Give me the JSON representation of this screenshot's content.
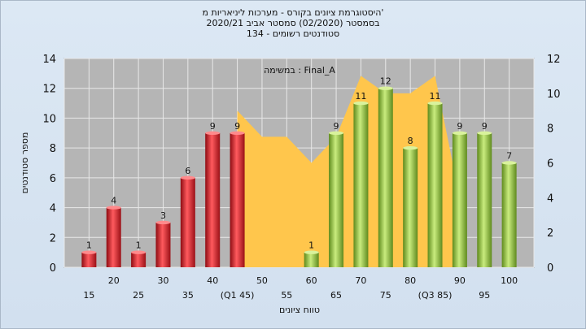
{
  "chart_data": {
    "type": "bar",
    "title_lines": [
      "היסטוגרמת ציונים בקורס - מערכות ליניאריות מ'",
      "בסמסטר (02/2020) סמסטר אביב 2020/21",
      "סטודנטים רשומים - 134"
    ],
    "annotation": "במשימה : Final_A",
    "xlabel": "טווח ציונים",
    "ylabel": "מספר סטודנטים",
    "ylim": [
      0,
      14
    ],
    "y_ticks": [
      0,
      2,
      4,
      6,
      8,
      10,
      12,
      14
    ],
    "y2lim": [
      0,
      12
    ],
    "y2_ticks": [
      0,
      2,
      4,
      6,
      8,
      10,
      12
    ],
    "grid": true,
    "x_tick_labels_upper": [
      "20",
      "30",
      "40",
      "50",
      "60",
      "70",
      "80",
      "90",
      "100"
    ],
    "x_tick_labels_lower": [
      "15",
      "25",
      "35",
      "(Q1 45)",
      "55",
      "65",
      "75",
      "(Q3 85)",
      "95"
    ],
    "categories": [
      "15",
      "20",
      "25",
      "30",
      "35",
      "40",
      "45",
      "50",
      "55",
      "60",
      "65",
      "70",
      "75",
      "80",
      "85",
      "90",
      "95",
      "100"
    ],
    "values": [
      1,
      4,
      1,
      3,
      6,
      9,
      9,
      0,
      0,
      1,
      9,
      11,
      12,
      8,
      11,
      9,
      9,
      7
    ],
    "bar_colors": [
      "#e0202a",
      "#e0202a",
      "#e0202a",
      "#e0202a",
      "#e0202a",
      "#e0202a",
      "#e0202a",
      null,
      null,
      "#8fc43a",
      "#8fc43a",
      "#8fc43a",
      "#8fc43a",
      "#8fc43a",
      "#8fc43a",
      "#8fc43a",
      "#8fc43a",
      "#8fc43a"
    ],
    "area_series": {
      "axis": "secondary",
      "color": "#ffc64c",
      "x": [
        45,
        50,
        55,
        60,
        65,
        70,
        75,
        80,
        85,
        90
      ],
      "values": [
        9,
        7.5,
        7.5,
        6,
        7.5,
        11,
        10,
        10,
        11,
        4
      ]
    }
  },
  "colors": {
    "background": "#d6e4f2",
    "plot_background": "#b5b5b5",
    "grid": "#e8e8e8"
  }
}
